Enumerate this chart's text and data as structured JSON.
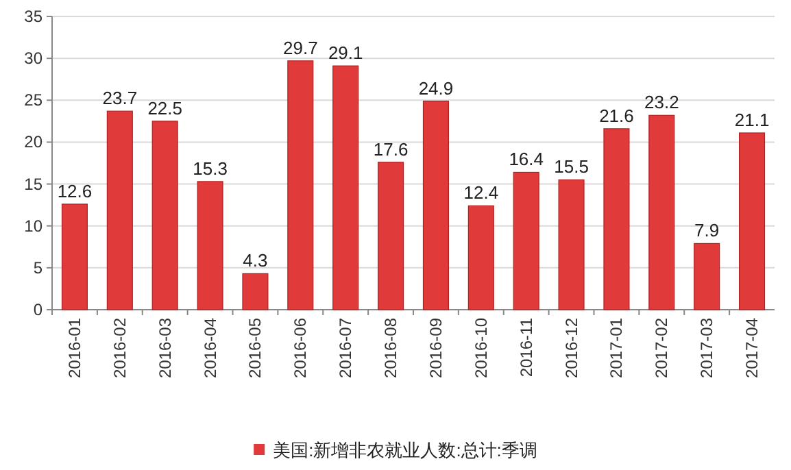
{
  "chart_data": {
    "type": "bar",
    "categories": [
      "2016-01",
      "2016-02",
      "2016-03",
      "2016-04",
      "2016-05",
      "2016-06",
      "2016-07",
      "2016-08",
      "2016-09",
      "2016-10",
      "2016-11",
      "2016-12",
      "2017-01",
      "2017-02",
      "2017-03",
      "2017-04"
    ],
    "series": [
      {
        "name": "美国:新增非农就业人数:总计:季调",
        "color": "#e03a3a",
        "values": [
          12.6,
          23.7,
          22.5,
          15.3,
          4.3,
          29.7,
          29.1,
          17.6,
          24.9,
          12.4,
          16.4,
          15.5,
          21.6,
          23.2,
          7.9,
          21.1
        ]
      }
    ],
    "ylim": [
      0,
      35
    ],
    "yticks": [
      0,
      5,
      10,
      15,
      20,
      25,
      30,
      35
    ],
    "grid": "y",
    "legend": "bottom",
    "data_labels": true
  }
}
